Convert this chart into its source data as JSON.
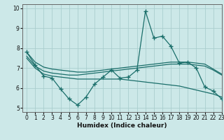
{
  "xlabel": "Humidex (Indice chaleur)",
  "bg_color": "#cce8e8",
  "line_color": "#1a6e6a",
  "grid_color": "#aacece",
  "xlim": [
    -0.5,
    23
  ],
  "ylim": [
    4.8,
    10.2
  ],
  "yticks": [
    5,
    6,
    7,
    8,
    9,
    10
  ],
  "xticks": [
    0,
    1,
    2,
    3,
    4,
    5,
    6,
    7,
    8,
    9,
    10,
    11,
    12,
    13,
    14,
    15,
    16,
    17,
    18,
    19,
    20,
    21,
    22,
    23
  ],
  "series": [
    {
      "x": [
        0,
        1,
        2,
        3,
        4,
        5,
        6,
        7,
        8,
        9,
        10,
        11,
        12,
        13,
        14,
        15,
        16,
        17,
        18,
        19,
        20,
        21,
        22,
        23
      ],
      "y": [
        7.8,
        7.15,
        6.6,
        6.5,
        5.95,
        5.45,
        5.15,
        5.55,
        6.2,
        6.55,
        6.9,
        6.5,
        6.55,
        6.9,
        9.85,
        8.5,
        8.6,
        8.1,
        7.25,
        7.3,
        7.0,
        6.05,
        5.85,
        5.45
      ],
      "marker": "+",
      "markersize": 4,
      "linewidth": 0.9,
      "zorder": 3
    },
    {
      "x": [
        0,
        1,
        2,
        3,
        4,
        5,
        6,
        7,
        8,
        9,
        10,
        11,
        12,
        13,
        14,
        15,
        16,
        17,
        18,
        19,
        20,
        21,
        22,
        23
      ],
      "y": [
        7.6,
        7.1,
        6.85,
        6.75,
        6.7,
        6.65,
        6.65,
        6.7,
        6.75,
        6.8,
        6.85,
        6.9,
        6.95,
        7.0,
        7.05,
        7.1,
        7.15,
        7.2,
        7.2,
        7.2,
        7.15,
        7.1,
        6.9,
        6.65
      ],
      "marker": null,
      "markersize": 0,
      "linewidth": 0.9,
      "zorder": 2
    },
    {
      "x": [
        0,
        1,
        2,
        3,
        4,
        5,
        6,
        7,
        8,
        9,
        10,
        11,
        12,
        13,
        14,
        15,
        16,
        17,
        18,
        19,
        20,
        21,
        22,
        23
      ],
      "y": [
        7.8,
        7.3,
        7.05,
        6.95,
        6.9,
        6.85,
        6.8,
        6.8,
        6.85,
        6.9,
        6.95,
        7.0,
        7.05,
        7.1,
        7.15,
        7.2,
        7.25,
        7.3,
        7.3,
        7.3,
        7.25,
        7.2,
        6.95,
        6.7
      ],
      "marker": null,
      "markersize": 0,
      "linewidth": 0.9,
      "zorder": 2
    },
    {
      "x": [
        0,
        1,
        2,
        3,
        4,
        5,
        6,
        7,
        8,
        9,
        10,
        11,
        12,
        13,
        14,
        15,
        16,
        17,
        18,
        19,
        20,
        21,
        22,
        23
      ],
      "y": [
        7.5,
        7.0,
        6.7,
        6.6,
        6.55,
        6.5,
        6.45,
        6.45,
        6.45,
        6.45,
        6.45,
        6.45,
        6.4,
        6.35,
        6.3,
        6.25,
        6.2,
        6.15,
        6.1,
        6.0,
        5.9,
        5.8,
        5.7,
        5.55
      ],
      "marker": null,
      "markersize": 0,
      "linewidth": 0.9,
      "zorder": 2
    }
  ]
}
